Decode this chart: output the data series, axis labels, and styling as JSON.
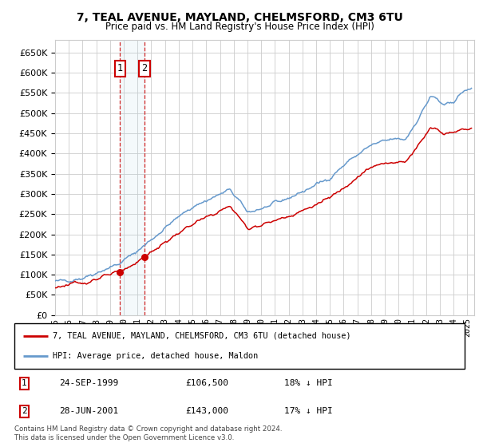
{
  "title": "7, TEAL AVENUE, MAYLAND, CHELMSFORD, CM3 6TU",
  "subtitle": "Price paid vs. HM Land Registry's House Price Index (HPI)",
  "legend_line1": "7, TEAL AVENUE, MAYLAND, CHELMSFORD, CM3 6TU (detached house)",
  "legend_line2": "HPI: Average price, detached house, Maldon",
  "footer": "Contains HM Land Registry data © Crown copyright and database right 2024.\nThis data is licensed under the Open Government Licence v3.0.",
  "transactions": [
    {
      "num": 1,
      "date": "24-SEP-1999",
      "price": 106500,
      "hpi_pct": "18% ↓ HPI",
      "year": 1999.73
    },
    {
      "num": 2,
      "date": "28-JUN-2001",
      "price": 143000,
      "hpi_pct": "17% ↓ HPI",
      "year": 2001.49
    }
  ],
  "red_color": "#cc0000",
  "blue_color": "#6699cc",
  "grid_color": "#cccccc",
  "background_color": "#ffffff",
  "ylim": [
    0,
    680000
  ],
  "yticks": [
    0,
    50000,
    100000,
    150000,
    200000,
    250000,
    300000,
    350000,
    400000,
    450000,
    500000,
    550000,
    600000,
    650000
  ],
  "xlim_start": 1995.0,
  "xlim_end": 2025.5,
  "xtick_years": [
    1995,
    1996,
    1997,
    1998,
    1999,
    2000,
    2001,
    2002,
    2003,
    2004,
    2005,
    2006,
    2007,
    2008,
    2009,
    2010,
    2011,
    2012,
    2013,
    2014,
    2015,
    2016,
    2017,
    2018,
    2019,
    2020,
    2021,
    2022,
    2023,
    2024,
    2025
  ]
}
